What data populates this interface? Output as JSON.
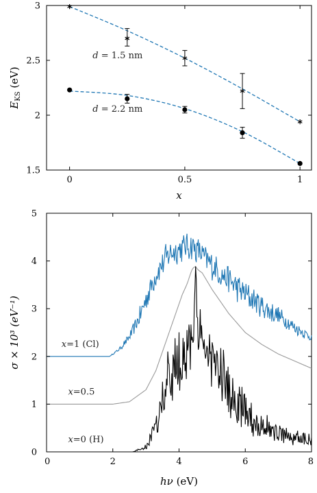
{
  "chart_data": [
    {
      "type": "scatter",
      "xlabel": "x",
      "ylabel": "E_KS (eV)",
      "ylabel_main": "E",
      "ylabel_sub": "KS",
      "ylabel_unit": "(eV)",
      "xlim": [
        -0.1,
        1.05
      ],
      "ylim": [
        1.5,
        3.0
      ],
      "xticks": [
        0,
        0.5,
        1
      ],
      "xtick_labels": [
        "0",
        "0.5",
        "1"
      ],
      "yticks": [
        1.5,
        2,
        2.5,
        3
      ],
      "ytick_labels": [
        "1.5",
        "2",
        "2.5",
        "3"
      ],
      "fit_color": "#1f77b4",
      "series": [
        {
          "marker": "star",
          "label": "d = 1.5 nm",
          "label_var": "d",
          "label_value": " = 1.5 nm",
          "label_at": [
            0.1,
            2.52
          ],
          "x": [
            0,
            0.25,
            0.5,
            0.75,
            1
          ],
          "y": [
            2.99,
            2.7,
            2.52,
            2.22,
            1.94
          ],
          "err": [
            0,
            0.08,
            0.07,
            0.16,
            0
          ],
          "err_center": [
            2.99,
            2.71,
            2.52,
            2.22,
            1.94
          ],
          "fit": [
            [
              0,
              2.99
            ],
            [
              0.25,
              2.77
            ],
            [
              0.5,
              2.52
            ],
            [
              0.75,
              2.24
            ],
            [
              1,
              1.94
            ]
          ]
        },
        {
          "marker": "circle",
          "label": "d = 2.2 nm",
          "label_var": "d",
          "label_value": " = 2.2 nm",
          "label_at": [
            0.1,
            2.03
          ],
          "x": [
            0,
            0.25,
            0.5,
            0.75,
            1
          ],
          "y": [
            2.23,
            2.15,
            2.05,
            1.84,
            1.56
          ],
          "err": [
            0,
            0.04,
            0.03,
            0.05,
            0
          ],
          "err_center": [
            2.23,
            2.15,
            2.05,
            1.84,
            1.56
          ],
          "fit": [
            [
              0,
              2.22
            ],
            [
              0.25,
              2.18
            ],
            [
              0.5,
              2.06
            ],
            [
              0.75,
              1.85
            ],
            [
              1,
              1.56
            ]
          ]
        }
      ]
    },
    {
      "type": "line",
      "xlabel": "hν (eV)",
      "xlabel_var": "hν",
      "xlabel_unit": " (eV)",
      "ylabel": "σ × 10³ (eV⁻¹)",
      "xlim": [
        0,
        8
      ],
      "ylim": [
        0,
        5
      ],
      "xticks": [
        0,
        2,
        4,
        6,
        8
      ],
      "xtick_labels": [
        "0",
        "2",
        "4",
        "6",
        "8"
      ],
      "yticks": [
        0,
        1,
        2,
        3,
        4,
        5
      ],
      "ytick_labels": [
        "0",
        "1",
        "2",
        "3",
        "4",
        "5"
      ],
      "series": [
        {
          "label": "x=1 (Cl)",
          "label_var": "x",
          "label_value": "=1 (Cl)",
          "label_at": [
            0.45,
            2.2
          ],
          "color": "#1f77b4",
          "noise": 0.32,
          "x": [
            0,
            1.9,
            2.2,
            2.5,
            2.8,
            3.0,
            3.2,
            3.4,
            3.6,
            3.8,
            4.0,
            4.2,
            4.4,
            4.6,
            4.8,
            5.0,
            5.5,
            6.0,
            6.5,
            7.0,
            7.5,
            8.0
          ],
          "y": [
            2.0,
            2.0,
            2.15,
            2.4,
            2.8,
            3.2,
            3.55,
            3.85,
            4.05,
            4.2,
            4.25,
            4.3,
            4.3,
            4.2,
            4.05,
            3.9,
            3.6,
            3.3,
            3.05,
            2.85,
            2.6,
            2.4
          ]
        },
        {
          "label": "x=0.5",
          "label_var": "x",
          "label_value": "=0.5",
          "label_at": [
            0.65,
            1.2
          ],
          "color": "#999999",
          "noise": 0,
          "x": [
            0,
            2.0,
            2.5,
            3.0,
            3.3,
            3.6,
            3.9,
            4.1,
            4.3,
            4.5,
            4.7,
            5.0,
            5.5,
            6.0,
            6.5,
            7.0,
            7.5,
            8.0
          ],
          "y": [
            1.0,
            1.0,
            1.05,
            1.3,
            1.7,
            2.3,
            2.9,
            3.3,
            3.6,
            3.85,
            3.75,
            3.4,
            2.9,
            2.5,
            2.25,
            2.05,
            1.9,
            1.75
          ],
          "secondary_bump": [
            4.4,
            3.8
          ]
        },
        {
          "label": "x=0 (H)",
          "label_var": "x",
          "label_value": "=0 (H)",
          "label_at": [
            0.65,
            0.2
          ],
          "color": "#000000",
          "noise": 0.7,
          "x": [
            0,
            2.6,
            3.0,
            3.3,
            3.5,
            3.7,
            3.9,
            4.1,
            4.3,
            4.5,
            4.7,
            4.9,
            5.1,
            5.3,
            5.6,
            6.0,
            6.5,
            7.0,
            7.5,
            8.0
          ],
          "y": [
            0,
            0,
            0.1,
            0.5,
            1.1,
            1.5,
            1.8,
            2.0,
            2.2,
            2.3,
            2.25,
            2.1,
            1.8,
            1.5,
            1.1,
            0.8,
            0.55,
            0.4,
            0.3,
            0.25
          ]
        }
      ]
    }
  ]
}
